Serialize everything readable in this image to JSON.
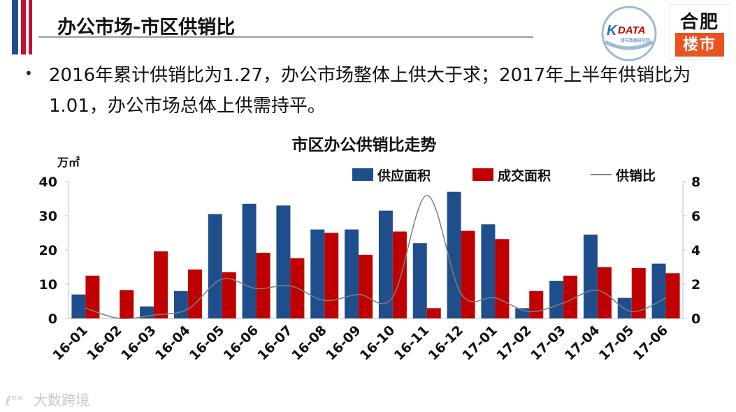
{
  "header": {
    "title": "办公市场-市区供销比",
    "logo_right_top": "合肥",
    "logo_right_bottom": "楼市",
    "logo_left_text": "DATA",
    "logo_left_sub": "楼市数据研究院"
  },
  "bullet": "2016年累计供销比为1.27，办公市场整体上供大于求；2017年上半年供销比为1.01，办公市场总体上供需持平。",
  "watermark": "大数跨境",
  "colors": {
    "supply": "#1f4e8c",
    "sales": "#c00000",
    "ratio": "#7f7f7f",
    "flag_blue": "#1f4e8c",
    "flag_red": "#c8102e"
  },
  "chart_data": {
    "type": "bar",
    "title": "市区办公供销比走势",
    "ylabel_left": "万㎡",
    "ylim_left": [
      0,
      40
    ],
    "yticks_left": [
      "0",
      "10",
      "20",
      "30",
      "40"
    ],
    "ylim_right": [
      0,
      8
    ],
    "yticks_right": [
      "0",
      "2",
      "4",
      "6",
      "8"
    ],
    "legend_position": "top-right",
    "grid": false,
    "categories": [
      "16-01",
      "16-02",
      "16-03",
      "16-04",
      "16-05",
      "16-06",
      "16-07",
      "16-08",
      "16-09",
      "16-10",
      "16-11",
      "16-12",
      "17-01",
      "17-02",
      "17-03",
      "17-04",
      "17-05",
      "17-06"
    ],
    "series": [
      {
        "name": "供应面积",
        "kind": "bar",
        "axis": "left",
        "values": [
          7,
          0,
          3.5,
          8,
          30.5,
          33.5,
          33,
          26,
          26,
          31.5,
          22,
          37,
          27.5,
          3,
          11,
          24.5,
          6,
          16
        ]
      },
      {
        "name": "成交面积",
        "kind": "bar",
        "axis": "left",
        "values": [
          12.5,
          8.3,
          19.6,
          14.3,
          13.5,
          19.2,
          17.6,
          25,
          18.6,
          25.4,
          3,
          25.6,
          23.2,
          8,
          12.5,
          15,
          14.7,
          13.2
        ]
      },
      {
        "name": "供销比",
        "kind": "line",
        "axis": "right",
        "values": [
          0.6,
          0,
          0.2,
          0.55,
          2.3,
          1.75,
          1.9,
          1.05,
          1.4,
          1.25,
          7.2,
          1.45,
          1.2,
          0.4,
          0.9,
          1.65,
          0.4,
          1.2
        ]
      }
    ]
  }
}
